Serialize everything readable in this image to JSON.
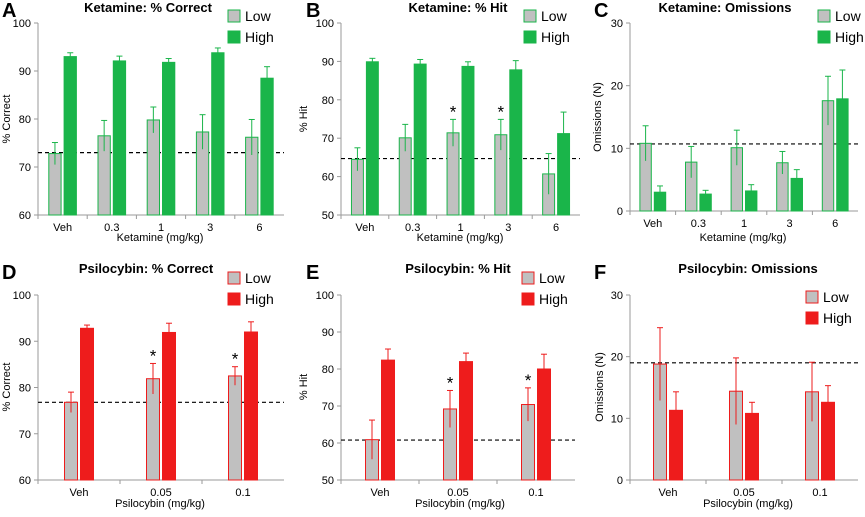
{
  "colors": {
    "low_fill": "#c0c0c0",
    "ket_high": "#1ab54a",
    "ket_low_edge": "#1ab54a",
    "psi_high": "#ee1c1c",
    "psi_low_edge": "#ee1c1c",
    "axis": "#9a9a9a",
    "refline": "#000000"
  },
  "chart_data": [
    {
      "id": "A",
      "letter": "A",
      "type": "bar",
      "palette": "ket",
      "title": "Ketamine: % Correct",
      "xlabel": "Ketamine (mg/kg)",
      "ylabel": "% Correct",
      "categories": [
        "Veh",
        "0.3",
        "1",
        "3",
        "6"
      ],
      "ylim": [
        60,
        100
      ],
      "yticks": [
        60,
        70,
        80,
        90,
        100
      ],
      "legend": [
        "Low",
        "High"
      ],
      "legend_position": "top-right",
      "series": [
        {
          "name": "Low",
          "values": [
            72.8,
            76.5,
            79.8,
            77.3,
            76.2
          ],
          "errors": [
            2.3,
            3.2,
            2.7,
            3.6,
            3.7
          ]
        },
        {
          "name": "High",
          "values": [
            93.0,
            92.1,
            91.8,
            93.8,
            88.5
          ],
          "errors": [
            0.8,
            1.0,
            0.8,
            1.0,
            2.4
          ]
        }
      ],
      "refline": 73,
      "stars": []
    },
    {
      "id": "B",
      "letter": "B",
      "type": "bar",
      "palette": "ket",
      "title": "Ketamine:  % Hit",
      "xlabel": "Ketamine (mg/kg)",
      "ylabel": "% Hit",
      "categories": [
        "Veh",
        "0.3",
        "1",
        "3",
        "6"
      ],
      "ylim": [
        50,
        100
      ],
      "yticks": [
        50,
        60,
        70,
        80,
        90,
        100
      ],
      "legend": [
        "Low",
        "High"
      ],
      "legend_position": "top-right",
      "series": [
        {
          "name": "Low",
          "values": [
            64.5,
            70.1,
            71.4,
            70.9,
            60.7
          ],
          "errors": [
            3.0,
            3.5,
            3.5,
            4.0,
            5.3
          ]
        },
        {
          "name": "High",
          "values": [
            89.9,
            89.3,
            88.7,
            87.8,
            71.2
          ],
          "errors": [
            0.9,
            1.2,
            1.2,
            2.4,
            5.6
          ]
        }
      ],
      "refline": 64.7,
      "stars": [
        [
          2,
          0
        ],
        [
          3,
          0
        ]
      ]
    },
    {
      "id": "C",
      "letter": "C",
      "type": "bar",
      "palette": "ket",
      "title": "Ketamine: Omissions",
      "xlabel": "Ketamine (mg/kg)",
      "ylabel": "Omissions (N)",
      "categories": [
        "Veh",
        "0.3",
        "1",
        "3",
        "6"
      ],
      "ylim": [
        0,
        30
      ],
      "yticks": [
        0,
        10,
        20,
        30
      ],
      "legend": [
        "Low",
        "High"
      ],
      "legend_position": "top-right",
      "series": [
        {
          "name": "Low",
          "values": [
            10.8,
            7.8,
            10.1,
            7.7,
            17.6
          ],
          "errors": [
            2.8,
            2.5,
            2.8,
            1.8,
            3.9
          ]
        },
        {
          "name": "High",
          "values": [
            3.0,
            2.7,
            3.2,
            5.2,
            17.9
          ],
          "errors": [
            1.0,
            0.6,
            1.0,
            1.4,
            4.6
          ]
        }
      ],
      "refline": 10.7,
      "stars": []
    },
    {
      "id": "D",
      "letter": "D",
      "type": "bar",
      "palette": "psi",
      "title": "Psilocybin: % Correct",
      "xlabel": "Psilocybin (mg/kg)",
      "ylabel": "% Correct",
      "categories": [
        "Veh",
        "0.05",
        "0.1"
      ],
      "ylim": [
        60,
        100
      ],
      "yticks": [
        60,
        70,
        80,
        90,
        100
      ],
      "legend": [
        "Low",
        "High"
      ],
      "legend_position": "top-right",
      "series": [
        {
          "name": "Low",
          "values": [
            76.8,
            81.9,
            82.5
          ],
          "errors": [
            2.2,
            3.3,
            2.0
          ]
        },
        {
          "name": "High",
          "values": [
            92.8,
            91.9,
            92.0
          ],
          "errors": [
            0.7,
            2.0,
            2.2
          ]
        }
      ],
      "refline": 76.8,
      "stars": [
        [
          1,
          0
        ],
        [
          2,
          0
        ]
      ]
    },
    {
      "id": "E",
      "letter": "E",
      "type": "bar",
      "palette": "psi",
      "title": "Psilocybin: % Hit",
      "xlabel": "Psilocybin (mg/kg)",
      "ylabel": "% Hit",
      "categories": [
        "Veh",
        "0.05",
        "0.1"
      ],
      "ylim": [
        50,
        100
      ],
      "yticks": [
        50,
        60,
        70,
        80,
        90,
        100
      ],
      "legend": [
        "Low",
        "High"
      ],
      "legend_position": "top-right",
      "series": [
        {
          "name": "Low",
          "values": [
            60.9,
            69.2,
            70.4
          ],
          "errors": [
            5.3,
            5.0,
            4.5
          ]
        },
        {
          "name": "High",
          "values": [
            82.4,
            82.0,
            80.0
          ],
          "errors": [
            3.0,
            2.3,
            4.0
          ]
        }
      ],
      "refline": 60.8,
      "stars": [
        [
          1,
          0
        ],
        [
          2,
          0
        ]
      ]
    },
    {
      "id": "F",
      "letter": "F",
      "type": "bar",
      "palette": "psi",
      "title": "Psilocybin: Omissions",
      "xlabel": "Psilocybin (mg/kg)",
      "ylabel": "Omissions (N)",
      "categories": [
        "Veh",
        "0.05",
        "0.1"
      ],
      "ylim": [
        0,
        30
      ],
      "yticks": [
        0,
        10,
        20,
        30
      ],
      "legend": [
        "Low",
        "High"
      ],
      "legend_position": "top-right",
      "series": [
        {
          "name": "Low",
          "values": [
            18.8,
            14.4,
            14.3
          ],
          "errors": [
            5.9,
            5.4,
            4.8
          ]
        },
        {
          "name": "High",
          "values": [
            11.3,
            10.8,
            12.6
          ],
          "errors": [
            3.0,
            1.8,
            2.7
          ]
        }
      ],
      "refline": 19,
      "stars": []
    }
  ]
}
